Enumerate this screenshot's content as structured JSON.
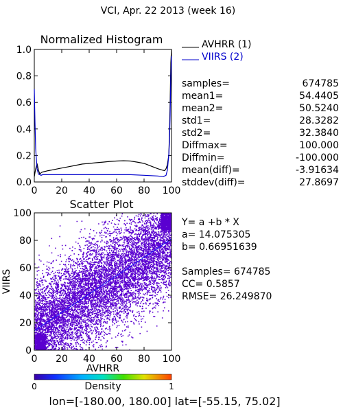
{
  "header": {
    "title": "VCI,  Apr. 22 2013 (week 16)"
  },
  "colors": {
    "avhrr": "#000000",
    "viirs": "#0000cc",
    "scatter": "#5a00d0",
    "fit": "#1a1aff"
  },
  "chart_data": [
    {
      "type": "line",
      "title": "Normalized Histogram",
      "xlim": [
        0,
        100
      ],
      "ylim": [
        0,
        1.0
      ],
      "xticks": [
        "0",
        "20",
        "40",
        "60",
        "80",
        "100"
      ],
      "yticks": [
        "0.0",
        "0.2",
        "0.4",
        "0.6",
        "0.8",
        "1.0"
      ],
      "series": [
        {
          "name": "AVHRR (1)",
          "x": [
            0,
            1,
            2,
            3,
            4,
            5,
            6,
            8,
            10,
            15,
            20,
            25,
            30,
            35,
            40,
            45,
            50,
            55,
            60,
            65,
            70,
            75,
            80,
            85,
            90,
            93,
            95,
            96,
            97,
            98,
            98.5,
            99,
            99.5,
            100
          ],
          "y": [
            0.04,
            0.1,
            0.14,
            0.09,
            0.06,
            0.07,
            0.075,
            0.08,
            0.085,
            0.095,
            0.105,
            0.115,
            0.125,
            0.135,
            0.14,
            0.145,
            0.15,
            0.155,
            0.158,
            0.16,
            0.158,
            0.15,
            0.14,
            0.12,
            0.1,
            0.09,
            0.085,
            0.1,
            0.13,
            0.2,
            0.35,
            0.6,
            0.9,
            1.0
          ]
        },
        {
          "name": "VIIRS (2)",
          "x": [
            0,
            0.5,
            1,
            2,
            3,
            4,
            5,
            6,
            8,
            10,
            20,
            30,
            40,
            50,
            60,
            70,
            80,
            90,
            94,
            96,
            97,
            98,
            98.5,
            99,
            99.5,
            100
          ],
          "y": [
            0.7,
            0.45,
            0.25,
            0.1,
            0.06,
            0.055,
            0.05,
            0.055,
            0.055,
            0.055,
            0.055,
            0.055,
            0.055,
            0.055,
            0.055,
            0.055,
            0.05,
            0.045,
            0.04,
            0.05,
            0.09,
            0.2,
            0.3,
            0.5,
            0.8,
            0.95
          ]
        }
      ]
    },
    {
      "type": "scatter",
      "title": "Scatter Plot",
      "xlabel": "AVHRR",
      "ylabel": "VIIRS",
      "xlim": [
        0,
        100
      ],
      "ylim": [
        0,
        100
      ],
      "xticks": [
        "0",
        "20",
        "40",
        "60",
        "80",
        "100"
      ],
      "yticks": [
        "0",
        "20",
        "40",
        "60",
        "80",
        "100"
      ],
      "fit": {
        "a": 14.075305,
        "b": 0.66951639
      }
    }
  ],
  "stats": [
    {
      "label": "samples=",
      "value": "674785"
    },
    {
      "label": "mean1=",
      "value": "54.4405"
    },
    {
      "label": "mean2=",
      "value": "50.5240"
    },
    {
      "label": "std1=",
      "value": "28.3282"
    },
    {
      "label": "std2=",
      "value": "32.3840"
    },
    {
      "label": "Diffmax=",
      "value": "100.000"
    },
    {
      "label": "Diffmin=",
      "value": "-100.000"
    },
    {
      "label": "mean(diff)=",
      "value": "-3.91634"
    },
    {
      "label": "stddev(diff)=",
      "value": "27.8697"
    }
  ],
  "regression": {
    "equation": "Y= a +b * X",
    "a_line": "a= 14.075305",
    "b_line": "b= 0.66951639",
    "samples_line": "Samples= 674785",
    "cc_line": "CC=  0.5857",
    "rmse_line": "RMSE= 26.249870"
  },
  "colorbar": {
    "label": "Density",
    "min_label": "0",
    "max_label": "1"
  },
  "footer": {
    "bounds": "lon=[-180.00, 180.00] lat=[-55.15, 75.02]"
  }
}
